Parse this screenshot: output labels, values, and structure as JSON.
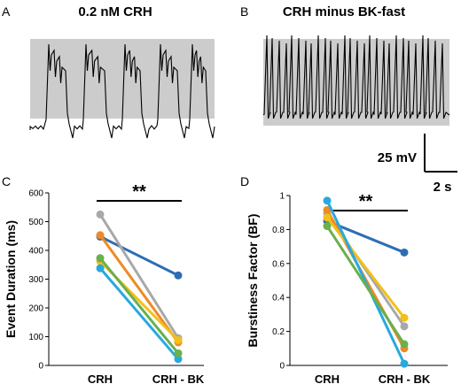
{
  "panels": {
    "a": {
      "letter": "A",
      "title": "0.2 nM CRH"
    },
    "b": {
      "letter": "B",
      "title": "CRH minus BK-fast"
    },
    "c": {
      "letter": "C"
    },
    "d": {
      "letter": "D"
    }
  },
  "scale_bar": {
    "voltage": "25 mV",
    "time": "2 s"
  },
  "colors": {
    "shading": "#cccccc",
    "trace": "#000000",
    "series": [
      "#2e6db4",
      "#a8a8a8",
      "#f08a24",
      "#f2c018",
      "#27a9df",
      "#6ab04c"
    ]
  },
  "chart_data": [
    {
      "type": "line",
      "panel": "C",
      "title": "",
      "ylabel": "Event Duration (ms)",
      "xlabel": "",
      "categories": [
        "CRH",
        "CRH - BK"
      ],
      "ylim": [
        0,
        600
      ],
      "yticks": [
        "0",
        "100",
        "200",
        "300",
        "400",
        "500",
        "600"
      ],
      "significance": "**",
      "series": [
        {
          "values": [
            448,
            313
          ],
          "color": "#2e6db4"
        },
        {
          "values": [
            525,
            95
          ],
          "color": "#a8a8a8"
        },
        {
          "values": [
            453,
            80
          ],
          "color": "#f08a24"
        },
        {
          "values": [
            362,
            88
          ],
          "color": "#f2c018"
        },
        {
          "values": [
            338,
            22
          ],
          "color": "#27a9df"
        },
        {
          "values": [
            373,
            42
          ],
          "color": "#6ab04c"
        }
      ]
    },
    {
      "type": "line",
      "panel": "D",
      "title": "",
      "ylabel": "Burstiness Factor (BF)",
      "xlabel": "",
      "categories": [
        "CRH",
        "CRH - BK"
      ],
      "ylim": [
        0,
        1
      ],
      "yticks": [
        "0",
        "0.2",
        "0.4",
        "0.6",
        "0.8",
        "1"
      ],
      "significance": "**",
      "series": [
        {
          "values": [
            0.85,
            0.665
          ],
          "color": "#2e6db4"
        },
        {
          "values": [
            0.895,
            0.23
          ],
          "color": "#a8a8a8"
        },
        {
          "values": [
            0.915,
            0.1
          ],
          "color": "#f08a24"
        },
        {
          "values": [
            0.87,
            0.28
          ],
          "color": "#f2c018"
        },
        {
          "values": [
            0.97,
            0.01
          ],
          "color": "#27a9df"
        },
        {
          "values": [
            0.82,
            0.125
          ],
          "color": "#6ab04c"
        }
      ]
    }
  ]
}
